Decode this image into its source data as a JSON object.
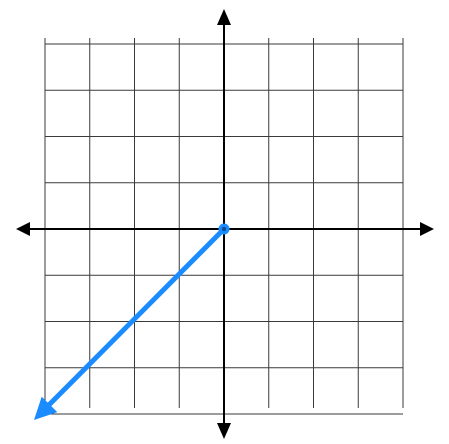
{
  "plane": {
    "x_range": [
      -4,
      4
    ],
    "y_range": [
      -4,
      4
    ],
    "grid_step": 1,
    "grid_color": "#3a3a3a",
    "axis_color": "#000000"
  },
  "ray": {
    "start": [
      0,
      0
    ],
    "direction_point": [
      -4,
      -4
    ],
    "color": "#1a8cff",
    "extends_past_grid": true
  }
}
